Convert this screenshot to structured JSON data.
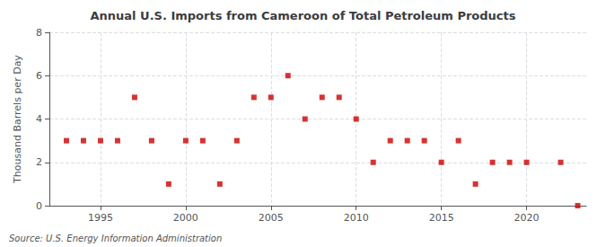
{
  "chart_data": {
    "type": "scatter",
    "title": "Annual U.S. Imports from Cameroon of Total Petroleum Products",
    "ylabel": "Thousand Barrels per Day",
    "source": "Source: U.S. Energy Information Administration",
    "x": [
      1993,
      1994,
      1995,
      1996,
      1997,
      1998,
      1999,
      2000,
      2001,
      2002,
      2003,
      2004,
      2005,
      2006,
      2007,
      2008,
      2009,
      2010,
      2011,
      2012,
      2013,
      2014,
      2015,
      2016,
      2017,
      2018,
      2019,
      2020,
      2022,
      2023
    ],
    "values": [
      3,
      3,
      3,
      3,
      5,
      3,
      1,
      3,
      3,
      1,
      3,
      5,
      5,
      6,
      4,
      5,
      5,
      4,
      2,
      3,
      3,
      3,
      2,
      3,
      1,
      2,
      2,
      2,
      2,
      0
    ],
    "color": "#cc0000",
    "marker": "square",
    "xlim": [
      1992,
      2023.5
    ],
    "ylim": [
      0,
      8
    ],
    "xticks": [
      1995,
      2000,
      2005,
      2010,
      2015,
      2020
    ],
    "yticks": [
      0,
      2,
      4,
      6,
      8
    ],
    "grid": true
  }
}
